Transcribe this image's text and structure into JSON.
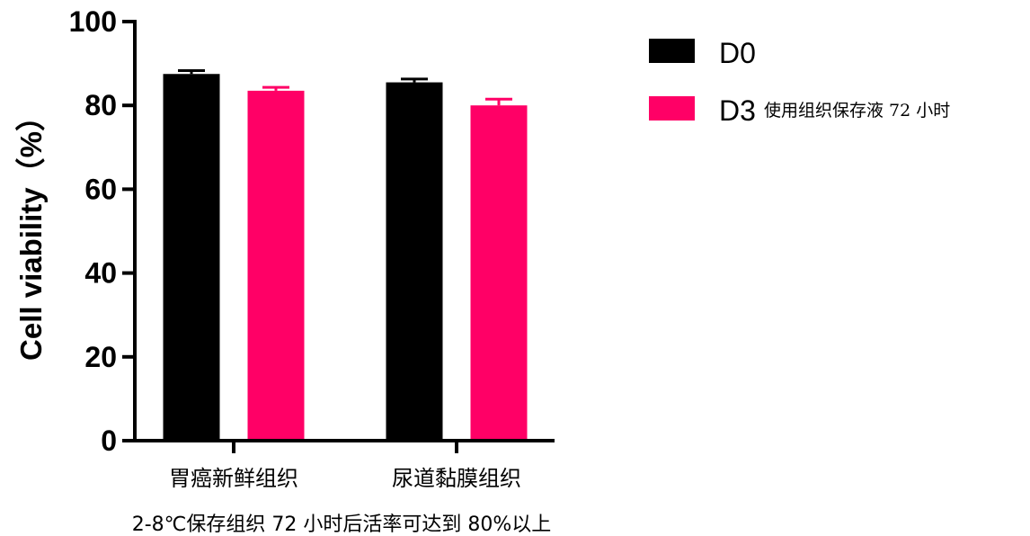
{
  "chart_data": {
    "type": "bar",
    "title": "",
    "xlabel": "",
    "ylabel": "Cell viability（%）",
    "ylim": [
      0,
      100
    ],
    "yticks": [
      0,
      20,
      40,
      60,
      80,
      100
    ],
    "categories": [
      "胃癌新鲜组织",
      "尿道黏膜组织"
    ],
    "series": [
      {
        "name": "D0",
        "label_main": "D0",
        "label_note": "",
        "color": "#000000",
        "values": [
          87.5,
          85.5
        ],
        "errors": [
          0.8,
          0.8
        ]
      },
      {
        "name": "D3 使用组织保存液 72 小时",
        "label_main": "D3",
        "label_note": "使用组织保存液 72 小时",
        "color": "#ff0066",
        "values": [
          83.5,
          80.0
        ],
        "errors": [
          0.8,
          1.5
        ]
      }
    ],
    "grid": false,
    "legend": "top-right",
    "caption": "2-8℃保存组织 72 小时后活率可达到 80%以上"
  }
}
